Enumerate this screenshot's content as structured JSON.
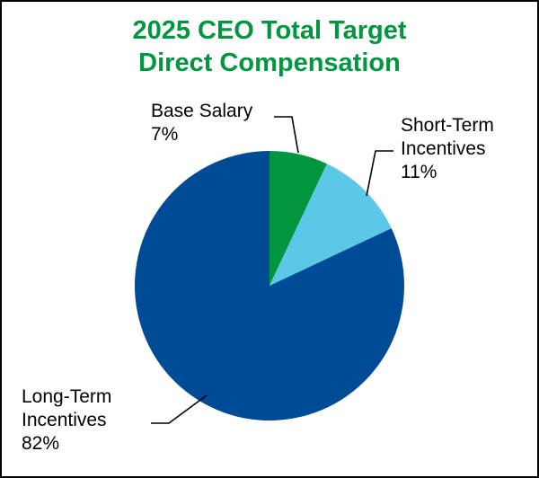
{
  "title_line1": "2025 CEO Total Target",
  "title_line2": "Direct Compensation",
  "colors": {
    "title": "#00963f",
    "frame": "#000000",
    "leader": "#000000"
  },
  "chart_data": {
    "type": "pie",
    "title": "2025 CEO Total Target Direct Compensation",
    "start_angle_deg": 0,
    "direction": "clockwise",
    "slices": [
      {
        "label_lines": [
          "Base Salary"
        ],
        "value": 7,
        "value_label": "7%",
        "color": "#00963f"
      },
      {
        "label_lines": [
          "Short-Term",
          "Incentives"
        ],
        "value": 11,
        "value_label": "11%",
        "color": "#5bc8e8"
      },
      {
        "label_lines": [
          "Long-Term",
          "Incentives"
        ],
        "value": 82,
        "value_label": "82%",
        "color": "#004b96"
      }
    ]
  }
}
